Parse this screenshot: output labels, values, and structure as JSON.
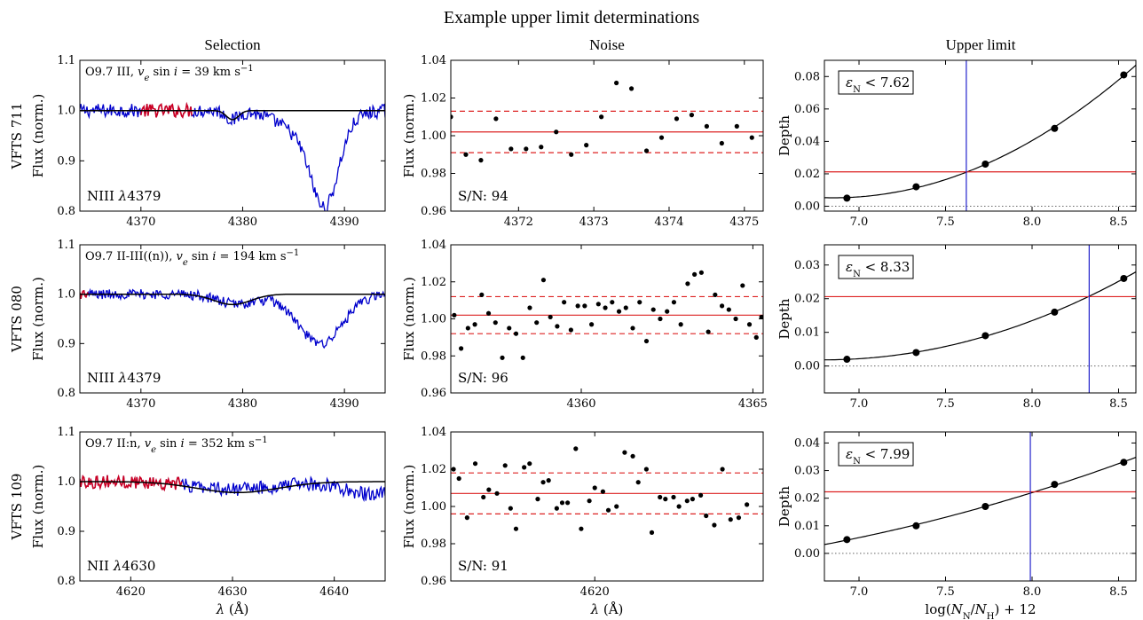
{
  "figure_title": "Example upper limit determinations",
  "column_titles": [
    "Selection",
    "Noise",
    "Upper limit"
  ],
  "x_label_wavelength": "λ (Å)",
  "x_label_abundance": "log(N_N/N_H) + 12",
  "colors": {
    "spectrum": "#0000cc",
    "selection": "#cc0022",
    "model": "#000000",
    "noise_level": "#dd2222",
    "limit_line": "#2222cc"
  },
  "chart_data": [
    {
      "type": "line",
      "panel": "selection",
      "row": 0,
      "star": "VFTS 711",
      "ylabel": "Flux (norm.)",
      "info": "O9.7 III, v_e sin i = 39 km s⁻¹",
      "line_label": "NIII λ4379",
      "xlim": [
        4364,
        4394
      ],
      "ylim": [
        0.8,
        1.1
      ],
      "xticks": [
        4370,
        4380,
        4390
      ],
      "yticks": [
        0.8,
        0.9,
        1.0,
        1.1
      ],
      "xtick_labels": [
        "4370",
        "4380",
        "4390"
      ],
      "ytick_labels": [
        "0.8",
        "0.9",
        "1.0",
        "1.1"
      ],
      "selection_range": [
        4370,
        4375
      ],
      "model": {
        "center": 4379,
        "depth": 0.018,
        "width": 0.6
      },
      "spectrum_features": [
        {
          "center": 4388.1,
          "depth": 0.15,
          "width": 1.3
        },
        {
          "center": 4386.6,
          "depth": 0.05,
          "width": 2.6
        },
        {
          "center": 4379.0,
          "depth": 0.018,
          "width": 0.6
        }
      ],
      "noise_amp": 0.008
    },
    {
      "type": "scatter",
      "panel": "noise",
      "row": 0,
      "ylabel": "Flux (norm.)",
      "xlim": [
        4371.1,
        4375.25
      ],
      "ylim": [
        0.96,
        1.04
      ],
      "xticks": [
        4372,
        4373,
        4374,
        4375
      ],
      "yticks": [
        0.96,
        0.98,
        1.0,
        1.02,
        1.04
      ],
      "xtick_labels": [
        "4372",
        "4373",
        "4374",
        "4375"
      ],
      "ytick_labels": [
        "0.96",
        "0.98",
        "1.00",
        "1.02",
        "1.04"
      ],
      "mean": 1.002,
      "upper": 1.013,
      "lower": 0.991,
      "snr_label": "S/N:",
      "snr": "94",
      "points": [
        [
          4371.1,
          1.01
        ],
        [
          4371.3,
          0.99
        ],
        [
          4371.5,
          0.987
        ],
        [
          4371.7,
          1.009
        ],
        [
          4371.9,
          0.993
        ],
        [
          4372.1,
          0.993
        ],
        [
          4372.3,
          0.994
        ],
        [
          4372.5,
          1.002
        ],
        [
          4372.7,
          0.99
        ],
        [
          4372.9,
          0.995
        ],
        [
          4373.1,
          1.01
        ],
        [
          4373.3,
          1.028
        ],
        [
          4373.5,
          1.025
        ],
        [
          4373.7,
          0.992
        ],
        [
          4373.9,
          0.999
        ],
        [
          4374.1,
          1.009
        ],
        [
          4374.3,
          1.011
        ],
        [
          4374.5,
          1.005
        ],
        [
          4374.7,
          0.996
        ],
        [
          4374.9,
          1.005
        ],
        [
          4375.1,
          0.999
        ]
      ]
    },
    {
      "type": "line",
      "panel": "upper_limit",
      "row": 0,
      "ylabel": "Depth",
      "limit_label": "ε_N < 7.62",
      "limit": 7.62,
      "threshold": 0.0212,
      "xlim": [
        6.8,
        8.6
      ],
      "ylim": [
        -0.003,
        0.09
      ],
      "xticks": [
        7.0,
        7.5,
        8.0,
        8.5
      ],
      "yticks": [
        0.0,
        0.02,
        0.04,
        0.06,
        0.08
      ],
      "xtick_labels": [
        "7.0",
        "7.5",
        "8.0",
        "8.5"
      ],
      "ytick_labels": [
        "0.00",
        "0.02",
        "0.04",
        "0.06",
        "0.08"
      ],
      "points": [
        [
          6.93,
          0.005
        ],
        [
          7.33,
          0.012
        ],
        [
          7.73,
          0.026
        ],
        [
          8.13,
          0.048
        ],
        [
          8.53,
          0.081
        ]
      ]
    },
    {
      "type": "line",
      "panel": "selection",
      "row": 1,
      "star": "VFTS 080",
      "ylabel": "Flux (norm.)",
      "info": "O9.7 II-III((n)), v_e sin i = 194 km s⁻¹",
      "line_label": "NIII λ4379",
      "xlim": [
        4364,
        4394
      ],
      "ylim": [
        0.8,
        1.1
      ],
      "xticks": [
        4370,
        4380,
        4390
      ],
      "yticks": [
        0.8,
        0.9,
        1.0,
        1.1
      ],
      "xtick_labels": [
        "4370",
        "4380",
        "4390"
      ],
      "ytick_labels": [
        "0.8",
        "0.9",
        "1.0",
        "1.1"
      ],
      "selection_range": [
        4364,
        4364.8
      ],
      "model": {
        "center": 4379,
        "depth": 0.021,
        "width": 1.8
      },
      "spectrum_features": [
        {
          "center": 4387.6,
          "depth": 0.1,
          "width": 2.2
        },
        {
          "center": 4379.5,
          "depth": 0.02,
          "width": 2.0
        }
      ],
      "noise_amp": 0.006
    },
    {
      "type": "scatter",
      "panel": "noise",
      "row": 1,
      "ylabel": "Flux (norm.)",
      "xlim": [
        4356.2,
        4365.3
      ],
      "ylim": [
        0.96,
        1.04
      ],
      "xticks": [
        4360,
        4365
      ],
      "yticks": [
        0.96,
        0.98,
        1.0,
        1.02,
        1.04
      ],
      "xtick_labels": [
        "4360",
        "4365"
      ],
      "ytick_labels": [
        "0.96",
        "0.98",
        "1.00",
        "1.02",
        "1.04"
      ],
      "mean": 1.002,
      "upper": 1.012,
      "lower": 0.992,
      "snr_label": "S/N:",
      "snr": "96",
      "points": [
        [
          4356.3,
          1.002
        ],
        [
          4356.5,
          0.984
        ],
        [
          4356.7,
          0.995
        ],
        [
          4356.9,
          0.997
        ],
        [
          4357.1,
          1.013
        ],
        [
          4357.3,
          1.003
        ],
        [
          4357.5,
          0.998
        ],
        [
          4357.7,
          0.979
        ],
        [
          4357.9,
          0.995
        ],
        [
          4358.1,
          0.992
        ],
        [
          4358.3,
          0.979
        ],
        [
          4358.5,
          1.006
        ],
        [
          4358.7,
          0.998
        ],
        [
          4358.9,
          1.021
        ],
        [
          4359.1,
          1.001
        ],
        [
          4359.3,
          0.996
        ],
        [
          4359.5,
          1.009
        ],
        [
          4359.7,
          0.994
        ],
        [
          4359.9,
          1.007
        ],
        [
          4360.1,
          1.007
        ],
        [
          4360.3,
          0.997
        ],
        [
          4360.5,
          1.008
        ],
        [
          4360.7,
          1.006
        ],
        [
          4360.9,
          1.009
        ],
        [
          4361.1,
          1.004
        ],
        [
          4361.3,
          1.006
        ],
        [
          4361.5,
          0.995
        ],
        [
          4361.7,
          1.009
        ],
        [
          4361.9,
          0.988
        ],
        [
          4362.1,
          1.005
        ],
        [
          4362.3,
          1.0
        ],
        [
          4362.5,
          1.004
        ],
        [
          4362.7,
          1.009
        ],
        [
          4362.9,
          0.997
        ],
        [
          4363.1,
          1.019
        ],
        [
          4363.3,
          1.024
        ],
        [
          4363.5,
          1.025
        ],
        [
          4363.7,
          0.993
        ],
        [
          4363.9,
          1.013
        ],
        [
          4364.1,
          1.007
        ],
        [
          4364.3,
          1.005
        ],
        [
          4364.5,
          1.0
        ],
        [
          4364.7,
          1.018
        ],
        [
          4364.9,
          0.997
        ],
        [
          4365.1,
          0.99
        ],
        [
          4365.25,
          1.001
        ]
      ]
    },
    {
      "type": "line",
      "panel": "upper_limit",
      "row": 1,
      "ylabel": "Depth",
      "limit_label": "ε_N < 8.33",
      "limit": 8.33,
      "threshold": 0.0206,
      "xlim": [
        6.8,
        8.6
      ],
      "ylim": [
        -0.008,
        0.036
      ],
      "xticks": [
        7.0,
        7.5,
        8.0,
        8.5
      ],
      "yticks": [
        0.0,
        0.01,
        0.02,
        0.03
      ],
      "xtick_labels": [
        "7.0",
        "7.5",
        "8.0",
        "8.5"
      ],
      "ytick_labels": [
        "0.00",
        "0.01",
        "0.02",
        "0.03"
      ],
      "points": [
        [
          6.93,
          0.002
        ],
        [
          7.33,
          0.004
        ],
        [
          7.73,
          0.009
        ],
        [
          8.13,
          0.016
        ],
        [
          8.53,
          0.026
        ]
      ]
    },
    {
      "type": "line",
      "panel": "selection",
      "row": 2,
      "star": "VFTS 109",
      "ylabel": "Flux (norm.)",
      "info": "O9.7 II:n, v_e sin i = 352 km s⁻¹",
      "line_label": "NII λ4630",
      "xlim": [
        4615,
        4645
      ],
      "ylim": [
        0.8,
        1.1
      ],
      "xticks": [
        4620,
        4630,
        4640
      ],
      "yticks": [
        0.8,
        0.9,
        1.0,
        1.1
      ],
      "xtick_labels": [
        "4620",
        "4630",
        "4640"
      ],
      "ytick_labels": [
        "0.8",
        "0.9",
        "1.0",
        "1.1"
      ],
      "selection_range": [
        4615,
        4625
      ],
      "model": {
        "center": 4630.5,
        "depth": 0.022,
        "width": 4.0
      },
      "spectrum_features": [
        {
          "center": 4630.5,
          "depth": 0.015,
          "width": 4.0
        },
        {
          "center": 4643.5,
          "depth": 0.025,
          "width": 2.5
        }
      ],
      "noise_amp": 0.008
    },
    {
      "type": "scatter",
      "panel": "noise",
      "row": 2,
      "ylabel": "Flux (norm.)",
      "xlim": [
        4614.7,
        4626.2
      ],
      "ylim": [
        0.96,
        1.04
      ],
      "xticks": [
        4620
      ],
      "yticks": [
        0.96,
        0.98,
        1.0,
        1.02,
        1.04
      ],
      "xtick_labels": [
        "4620"
      ],
      "ytick_labels": [
        "0.96",
        "0.98",
        "1.00",
        "1.02",
        "1.04"
      ],
      "mean": 1.007,
      "upper": 1.018,
      "lower": 0.996,
      "snr_label": "S/N:",
      "snr": "91",
      "points": [
        [
          4614.8,
          1.02
        ],
        [
          4615.0,
          1.015
        ],
        [
          4615.3,
          0.994
        ],
        [
          4615.6,
          1.023
        ],
        [
          4615.9,
          1.005
        ],
        [
          4616.1,
          1.009
        ],
        [
          4616.4,
          1.007
        ],
        [
          4616.7,
          1.022
        ],
        [
          4616.9,
          0.999
        ],
        [
          4617.1,
          0.988
        ],
        [
          4617.4,
          1.021
        ],
        [
          4617.6,
          1.023
        ],
        [
          4617.9,
          1.004
        ],
        [
          4618.1,
          1.013
        ],
        [
          4618.3,
          1.014
        ],
        [
          4618.6,
          0.999
        ],
        [
          4618.8,
          1.002
        ],
        [
          4619.0,
          1.002
        ],
        [
          4619.3,
          1.031
        ],
        [
          4619.5,
          0.988
        ],
        [
          4619.8,
          1.003
        ],
        [
          4620.0,
          1.01
        ],
        [
          4620.3,
          1.008
        ],
        [
          4620.5,
          0.998
        ],
        [
          4620.8,
          1.0
        ],
        [
          4621.1,
          1.029
        ],
        [
          4621.4,
          1.027
        ],
        [
          4621.6,
          1.013
        ],
        [
          4621.9,
          1.02
        ],
        [
          4622.1,
          0.986
        ],
        [
          4622.4,
          1.005
        ],
        [
          4622.6,
          1.004
        ],
        [
          4622.9,
          1.005
        ],
        [
          4623.1,
          1.0
        ],
        [
          4623.4,
          1.003
        ],
        [
          4623.6,
          1.004
        ],
        [
          4623.9,
          1.006
        ],
        [
          4624.1,
          0.995
        ],
        [
          4624.4,
          0.99
        ],
        [
          4624.7,
          1.02
        ],
        [
          4625.0,
          0.993
        ],
        [
          4625.3,
          0.994
        ],
        [
          4625.6,
          1.001
        ]
      ]
    },
    {
      "type": "line",
      "panel": "upper_limit",
      "row": 2,
      "ylabel": "Depth",
      "limit_label": "ε_N < 7.99",
      "limit": 7.99,
      "threshold": 0.0223,
      "xlim": [
        6.8,
        8.6
      ],
      "ylim": [
        -0.01,
        0.044
      ],
      "xticks": [
        7.0,
        7.5,
        8.0,
        8.5
      ],
      "yticks": [
        0.0,
        0.01,
        0.02,
        0.03,
        0.04
      ],
      "xtick_labels": [
        "7.0",
        "7.5",
        "8.0",
        "8.5"
      ],
      "ytick_labels": [
        "0.00",
        "0.01",
        "0.02",
        "0.03",
        "0.04"
      ],
      "points": [
        [
          6.93,
          0.005
        ],
        [
          7.33,
          0.01
        ],
        [
          7.73,
          0.017
        ],
        [
          8.13,
          0.025
        ],
        [
          8.53,
          0.033
        ]
      ]
    }
  ]
}
